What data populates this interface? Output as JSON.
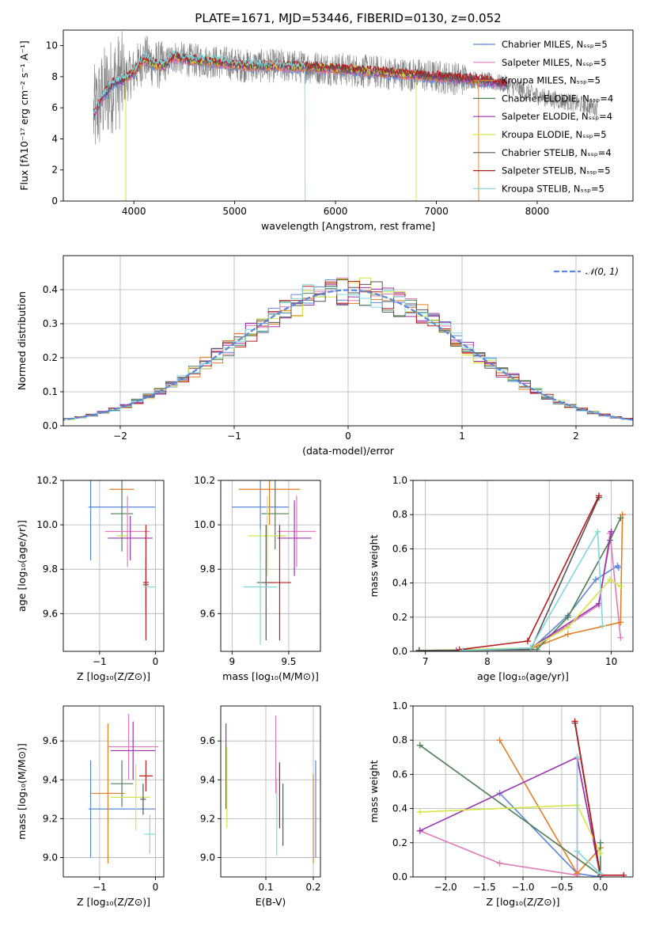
{
  "figure": {
    "title": "PLATE=1671, MJD=53446, FIBERID=0130, z=0.052"
  },
  "colors": {
    "Chabrier MILES": "#5b88d9",
    "Salpeter MILES": "#e07ab9",
    "Kroupa MILES": "#e57e22",
    "Chabrier ELODIE": "#4f7f55",
    "Salpeter ELODIE": "#9a34b0",
    "Kroupa ELODIE": "#d4e54a",
    "Chabrier STELIB": "#555555",
    "Salpeter STELIB": "#b71c1c",
    "Kroupa STELIB": "#7fd8dc"
  },
  "chart_data": [
    {
      "id": "spectrum",
      "type": "line",
      "xlabel": "wavelength [Angstrom, rest frame]",
      "ylabel": "Flux [fλ10⁻¹⁷ erg cm⁻² s⁻¹ A⁻¹]",
      "xlim": [
        3300,
        8950
      ],
      "ylim": [
        0,
        11
      ],
      "xticks": [
        4000,
        5000,
        6000,
        7000,
        8000
      ],
      "yticks": [
        0,
        2,
        4,
        6,
        8,
        10
      ],
      "legend_position": "right",
      "legend": [
        {
          "name": "Chabrier MILES, Nₛₛₚ=5",
          "color": "#5b88d9"
        },
        {
          "name": "Salpeter MILES, Nₛₛₚ=5",
          "color": "#e07ab9"
        },
        {
          "name": "Kroupa MILES, Nₛₛₚ=5",
          "color": "#e57e22"
        },
        {
          "name": "Chabrier ELODIE, Nₛₛₚ=4",
          "color": "#4f7f55"
        },
        {
          "name": "Salpeter ELODIE, Nₛₛₚ=4",
          "color": "#9a34b0"
        },
        {
          "name": "Kroupa ELODIE, Nₛₛₚ=5",
          "color": "#d4e54a"
        },
        {
          "name": "Chabrier STELIB, Nₛₛₚ=4",
          "color": "#555555"
        },
        {
          "name": "Salpeter STELIB, Nₛₛₚ=5",
          "color": "#b71c1c"
        },
        {
          "name": "Kroupa STELIB, Nₛₛₚ=5",
          "color": "#7fd8dc"
        }
      ],
      "continuum": [
        [
          3600,
          5.5
        ],
        [
          3700,
          6.8
        ],
        [
          3800,
          7.6
        ],
        [
          3900,
          7.8
        ],
        [
          4000,
          8.3
        ],
        [
          4100,
          9.2
        ],
        [
          4200,
          8.8
        ],
        [
          4300,
          8.7
        ],
        [
          4400,
          9.3
        ],
        [
          4500,
          9.1
        ],
        [
          4700,
          9.0
        ],
        [
          4900,
          8.9
        ],
        [
          5100,
          8.7
        ],
        [
          5400,
          8.7
        ],
        [
          5800,
          8.6
        ],
        [
          6200,
          8.4
        ],
        [
          6600,
          8.2
        ],
        [
          7000,
          8.0
        ],
        [
          7400,
          7.8
        ],
        [
          7700,
          7.5
        ],
        [
          7900,
          7.0
        ],
        [
          8100,
          6.6
        ],
        [
          8300,
          6.4
        ],
        [
          8600,
          6.0
        ]
      ],
      "model_cutoffs": [
        {
          "name": "Kroupa MILES",
          "from": 3920,
          "to": 7420
        },
        {
          "name": "Kroupa ELODIE",
          "from": 3920,
          "to": 6800
        },
        {
          "name": "Kroupa STELIB",
          "from": 3600,
          "to": 5700,
          "dip_at": 5700
        }
      ]
    },
    {
      "id": "residuals",
      "type": "step",
      "xlabel": "(data-model)/error",
      "ylabel": "Normed distribution",
      "xlim": [
        -2.5,
        2.5
      ],
      "ylim": [
        0,
        0.5
      ],
      "xticks": [
        -2,
        -1,
        0,
        1,
        2
      ],
      "yticks": [
        0.0,
        0.1,
        0.2,
        0.3,
        0.4
      ],
      "bin_width": 0.1,
      "legend": [
        {
          "name": "𝒩(0, 1)",
          "color": "#5b88d9",
          "style": "dashed"
        }
      ],
      "legend_position": "top-right",
      "series": [
        {
          "name": "Chabrier MILES",
          "color": "#5b88d9",
          "phase": 0
        },
        {
          "name": "Salpeter MILES",
          "color": "#e07ab9",
          "phase": 1
        },
        {
          "name": "Kroupa MILES",
          "color": "#e57e22",
          "phase": 2
        },
        {
          "name": "Chabrier ELODIE",
          "color": "#4f7f55",
          "phase": 3
        },
        {
          "name": "Salpeter ELODIE",
          "color": "#9a34b0",
          "phase": 4
        },
        {
          "name": "Kroupa ELODIE",
          "color": "#d4e54a",
          "phase": 5
        },
        {
          "name": "Chabrier STELIB",
          "color": "#555555",
          "phase": 6
        },
        {
          "name": "Salpeter STELIB",
          "color": "#b71c1c",
          "phase": 7
        },
        {
          "name": "Kroupa STELIB",
          "color": "#7fd8dc",
          "phase": 8
        }
      ]
    },
    {
      "id": "age-vs-Z",
      "type": "errorbar",
      "xlabel": "Z [log₁₀(Z/Z⊙)]",
      "ylabel": "age  [log₁₀(age/yr)]",
      "xlim": [
        -1.65,
        0.15
      ],
      "ylim": [
        9.43,
        10.2
      ],
      "xticks": [
        -1,
        0
      ],
      "yticks": [
        9.6,
        9.8,
        10.0,
        10.2
      ],
      "points": [
        {
          "name": "Chabrier MILES",
          "x": -0.6,
          "xerr": 0.6,
          "y": 10.08,
          "yerr": 0.24,
          "xbar_x": -1.16
        },
        {
          "name": "Kroupa MILES",
          "x": -0.6,
          "xerr": 0.22,
          "y": 10.16,
          "yerr": 0.0
        },
        {
          "name": "Chabrier ELODIE",
          "x": -0.6,
          "xerr": 0.2,
          "y": 10.05,
          "yerr": 0.17
        },
        {
          "name": "Kroupa ELODIE",
          "x": -0.6,
          "xerr": 0.1,
          "y": 9.95,
          "yerr": 0.0
        },
        {
          "name": "Salpeter MILES",
          "x": -0.5,
          "xerr": 0.4,
          "y": 9.97,
          "yerr": 0.16
        },
        {
          "name": "Salpeter ELODIE",
          "x": -0.45,
          "xerr": 0.4,
          "y": 9.94,
          "yerr": 0.1
        },
        {
          "name": "Chabrier STELIB",
          "x": -0.17,
          "xerr": 0.05,
          "y": 9.73,
          "yerr": 0.12
        },
        {
          "name": "Salpeter STELIB",
          "x": -0.17,
          "xerr": 0.05,
          "y": 9.74,
          "yerr": 0.26
        },
        {
          "name": "Kroupa STELIB",
          "x": -0.1,
          "xerr": 0.1,
          "y": 9.72,
          "yerr": 0.0
        }
      ]
    },
    {
      "id": "age-vs-mass",
      "type": "errorbar",
      "xlabel": "mass [log₁₀(M/M⊙)]",
      "ylabel": "",
      "xlim": [
        8.9,
        9.78
      ],
      "ylim": [
        9.43,
        10.2
      ],
      "xticks": [
        9.0,
        9.5
      ],
      "yticks": [
        9.6,
        9.8,
        10.0,
        10.2
      ],
      "points": [
        {
          "name": "Chabrier MILES",
          "x": 9.25,
          "xerr": 0.25,
          "y": 10.08,
          "yerr": 0.24
        },
        {
          "name": "Kroupa MILES",
          "x": 9.33,
          "xerr": 0.27,
          "y": 10.16,
          "yerr": 0.16
        },
        {
          "name": "Chabrier ELODIE",
          "x": 9.38,
          "xerr": 0.12,
          "y": 10.05,
          "yerr": 0.16
        },
        {
          "name": "Kroupa ELODIE",
          "x": 9.31,
          "xerr": 0.17,
          "y": 9.95,
          "yerr": 0.18
        },
        {
          "name": "Salpeter MILES",
          "x": 9.57,
          "xerr": 0.17,
          "y": 9.97,
          "yerr": 0.16
        },
        {
          "name": "Salpeter ELODIE",
          "x": 9.55,
          "xerr": 0.15,
          "y": 9.94,
          "yerr": 0.17
        },
        {
          "name": "Chabrier STELIB",
          "x": 9.3,
          "xerr": 0.08,
          "y": 9.74,
          "yerr": 0.26
        },
        {
          "name": "Salpeter STELIB",
          "x": 9.42,
          "xerr": 0.1,
          "y": 9.74,
          "yerr": 0.26
        },
        {
          "name": "Kroupa STELIB",
          "x": 9.25,
          "xerr": 0.15,
          "y": 9.72,
          "yerr": 0.26
        }
      ]
    },
    {
      "id": "weight-vs-age",
      "type": "line",
      "xlabel": "age  [log₁₀(age/yr)]",
      "ylabel": "mass weight",
      "xlim": [
        6.8,
        10.35
      ],
      "ylim": [
        0,
        1.0
      ],
      "xticks": [
        7,
        8,
        9,
        10
      ],
      "yticks": [
        0.0,
        0.2,
        0.4,
        0.6,
        0.8,
        1.0
      ],
      "series": [
        {
          "name": "Chabrier MILES",
          "points": [
            [
              6.9,
              0.005
            ],
            [
              8.7,
              0.01
            ],
            [
              9.3,
              0.21
            ],
            [
              9.75,
              0.42
            ],
            [
              10.1,
              0.5
            ],
            [
              10.12,
              0.49
            ]
          ]
        },
        {
          "name": "Salpeter MILES",
          "points": [
            [
              6.9,
              0.005
            ],
            [
              8.7,
              0.01
            ],
            [
              9.8,
              0.27
            ],
            [
              9.98,
              0.69
            ],
            [
              10.15,
              0.08
            ]
          ]
        },
        {
          "name": "Kroupa MILES",
          "points": [
            [
              6.9,
              0.005
            ],
            [
              8.7,
              0.015
            ],
            [
              9.3,
              0.1
            ],
            [
              10.15,
              0.17
            ],
            [
              10.18,
              0.8
            ]
          ]
        },
        {
          "name": "Chabrier ELODIE",
          "points": [
            [
              6.9,
              0.005
            ],
            [
              8.8,
              0.01
            ],
            [
              9.3,
              0.2
            ],
            [
              9.98,
              0.65
            ],
            [
              10.15,
              0.78
            ]
          ]
        },
        {
          "name": "Salpeter ELODIE",
          "points": [
            [
              7.5,
              0.005
            ],
            [
              8.7,
              0.02
            ],
            [
              9.8,
              0.28
            ],
            [
              10.0,
              0.7
            ]
          ]
        },
        {
          "name": "Kroupa ELODIE",
          "points": [
            [
              7.0,
              0.005
            ],
            [
              8.7,
              0.02
            ],
            [
              9.3,
              0.14
            ],
            [
              9.98,
              0.42
            ],
            [
              10.15,
              0.38
            ]
          ]
        },
        {
          "name": "Chabrier STELIB",
          "points": [
            [
              6.9,
              0.005
            ],
            [
              8.7,
              0.01
            ],
            [
              9.8,
              0.9
            ]
          ]
        },
        {
          "name": "Salpeter STELIB",
          "points": [
            [
              7.55,
              0.01
            ],
            [
              8.65,
              0.06
            ],
            [
              9.8,
              0.91
            ]
          ]
        },
        {
          "name": "Kroupa STELIB",
          "points": [
            [
              7.6,
              0.005
            ],
            [
              8.7,
              0.02
            ],
            [
              9.78,
              0.7
            ],
            [
              9.86,
              0.15
            ]
          ]
        }
      ]
    },
    {
      "id": "mass-vs-Z",
      "type": "errorbar",
      "xlabel": "Z [log₁₀(Z/Z⊙)]",
      "ylabel": "mass [log₁₀(M/M⊙)]",
      "xlim": [
        -1.65,
        0.15
      ],
      "ylim": [
        8.9,
        9.78
      ],
      "xticks": [
        -1,
        0
      ],
      "yticks": [
        9.0,
        9.2,
        9.4,
        9.6
      ],
      "points": [
        {
          "name": "Chabrier MILES",
          "x": -0.6,
          "xerr": 0.6,
          "y": 9.25,
          "yerr": 0.25,
          "ybar_x": -1.16
        },
        {
          "name": "Kroupa MILES",
          "x": -0.85,
          "xerr": 0.3,
          "y": 9.33,
          "yerr": 0.36,
          "ybar_x": -0.85
        },
        {
          "name": "Chabrier ELODIE",
          "x": -0.6,
          "xerr": 0.2,
          "y": 9.38,
          "yerr": 0.12
        },
        {
          "name": "Kroupa ELODIE",
          "x": -0.45,
          "xerr": 0.35,
          "y": 9.31,
          "yerr": 0.17,
          "ybar_x": -0.35
        },
        {
          "name": "Salpeter MILES",
          "x": -0.4,
          "xerr": 0.45,
          "y": 9.57,
          "yerr": 0.17,
          "ybar_x": -0.48
        },
        {
          "name": "Salpeter ELODIE",
          "x": -0.4,
          "xerr": 0.4,
          "y": 9.55,
          "yerr": 0.15,
          "ybar_x": -0.4
        },
        {
          "name": "Chabrier STELIB",
          "x": -0.22,
          "xerr": 0.05,
          "y": 9.3,
          "yerr": 0.08
        },
        {
          "name": "Salpeter STELIB",
          "x": -0.17,
          "xerr": 0.12,
          "y": 9.42,
          "yerr": 0.08
        },
        {
          "name": "Kroupa STELIB",
          "x": -0.1,
          "xerr": 0.1,
          "y": 9.12,
          "yerr": 0.1
        }
      ]
    },
    {
      "id": "mass-vs-ebv",
      "type": "errorbar",
      "xlabel": "E(B-V)",
      "ylabel": "",
      "xlim": [
        0.005,
        0.215
      ],
      "ylim": [
        8.9,
        9.78
      ],
      "xticks": [
        0.1,
        0.2
      ],
      "yticks": [
        9.0,
        9.2,
        9.4,
        9.6
      ],
      "points": [
        {
          "name": "Salpeter ELODIE",
          "x": 0.016,
          "y": 9.47,
          "yerr": 0.22
        },
        {
          "name": "Kroupa ELODIE",
          "x": 0.018,
          "y": 9.36,
          "yerr": 0.21
        },
        {
          "name": "Salpeter MILES",
          "x": 0.121,
          "y": 9.53,
          "yerr": 0.2
        },
        {
          "name": "Kroupa STELIB",
          "x": 0.123,
          "y": 9.21,
          "yerr": 0.2
        },
        {
          "name": "Salpeter STELIB",
          "x": 0.129,
          "y": 9.32,
          "yerr": 0.17
        },
        {
          "name": "Chabrier STELIB",
          "x": 0.136,
          "y": 9.22,
          "yerr": 0.16
        },
        {
          "name": "Kroupa MILES",
          "x": 0.2,
          "y": 9.2,
          "yerr": 0.23
        },
        {
          "name": "Chabrier MILES",
          "x": 0.205,
          "y": 9.25,
          "yerr": 0.25
        }
      ]
    },
    {
      "id": "weight-vs-Z",
      "type": "line",
      "xlabel": "Z [log₁₀(Z/Z⊙)]",
      "ylabel": "mass weight",
      "xlim": [
        -2.42,
        0.42
      ],
      "ylim": [
        0,
        1.0
      ],
      "xticks": [
        -2.0,
        -1.5,
        -1.0,
        -0.5,
        0.0
      ],
      "yticks": [
        0.0,
        0.2,
        0.4,
        0.6,
        0.8,
        1.0
      ],
      "series": [
        {
          "name": "Chabrier MILES",
          "points": [
            [
              -1.3,
              0.49
            ],
            [
              -0.3,
              0.02
            ],
            [
              0.0,
              0.0
            ]
          ]
        },
        {
          "name": "Salpeter MILES",
          "points": [
            [
              -2.33,
              0.27
            ],
            [
              -1.3,
              0.08
            ],
            [
              -0.3,
              0.01
            ],
            [
              -0.3,
              0.69
            ],
            [
              0.0,
              0.01
            ]
          ]
        },
        {
          "name": "Kroupa MILES",
          "points": [
            [
              -1.3,
              0.8
            ],
            [
              -0.3,
              0.02
            ],
            [
              0.0,
              0.17
            ]
          ]
        },
        {
          "name": "Chabrier ELODIE",
          "points": [
            [
              -2.33,
              0.77
            ],
            [
              0.0,
              0.01
            ],
            [
              0.0,
              0.2
            ]
          ]
        },
        {
          "name": "Salpeter ELODIE",
          "points": [
            [
              -2.33,
              0.27
            ],
            [
              -0.3,
              0.7
            ],
            [
              0.0,
              0.0
            ]
          ]
        },
        {
          "name": "Kroupa ELODIE",
          "points": [
            [
              -2.33,
              0.38
            ],
            [
              -0.3,
              0.42
            ],
            [
              0.0,
              0.14
            ]
          ]
        },
        {
          "name": "Chabrier STELIB",
          "points": [
            [
              -0.33,
              0.9
            ],
            [
              0.0,
              0.0
            ]
          ]
        },
        {
          "name": "Salpeter STELIB",
          "points": [
            [
              -0.33,
              0.91
            ],
            [
              0.0,
              0.01
            ],
            [
              0.3,
              0.01
            ]
          ]
        },
        {
          "name": "Kroupa STELIB",
          "points": [
            [
              -0.3,
              0.7
            ],
            [
              -0.3,
              0.15
            ],
            [
              0.0,
              0.02
            ]
          ]
        }
      ]
    }
  ]
}
